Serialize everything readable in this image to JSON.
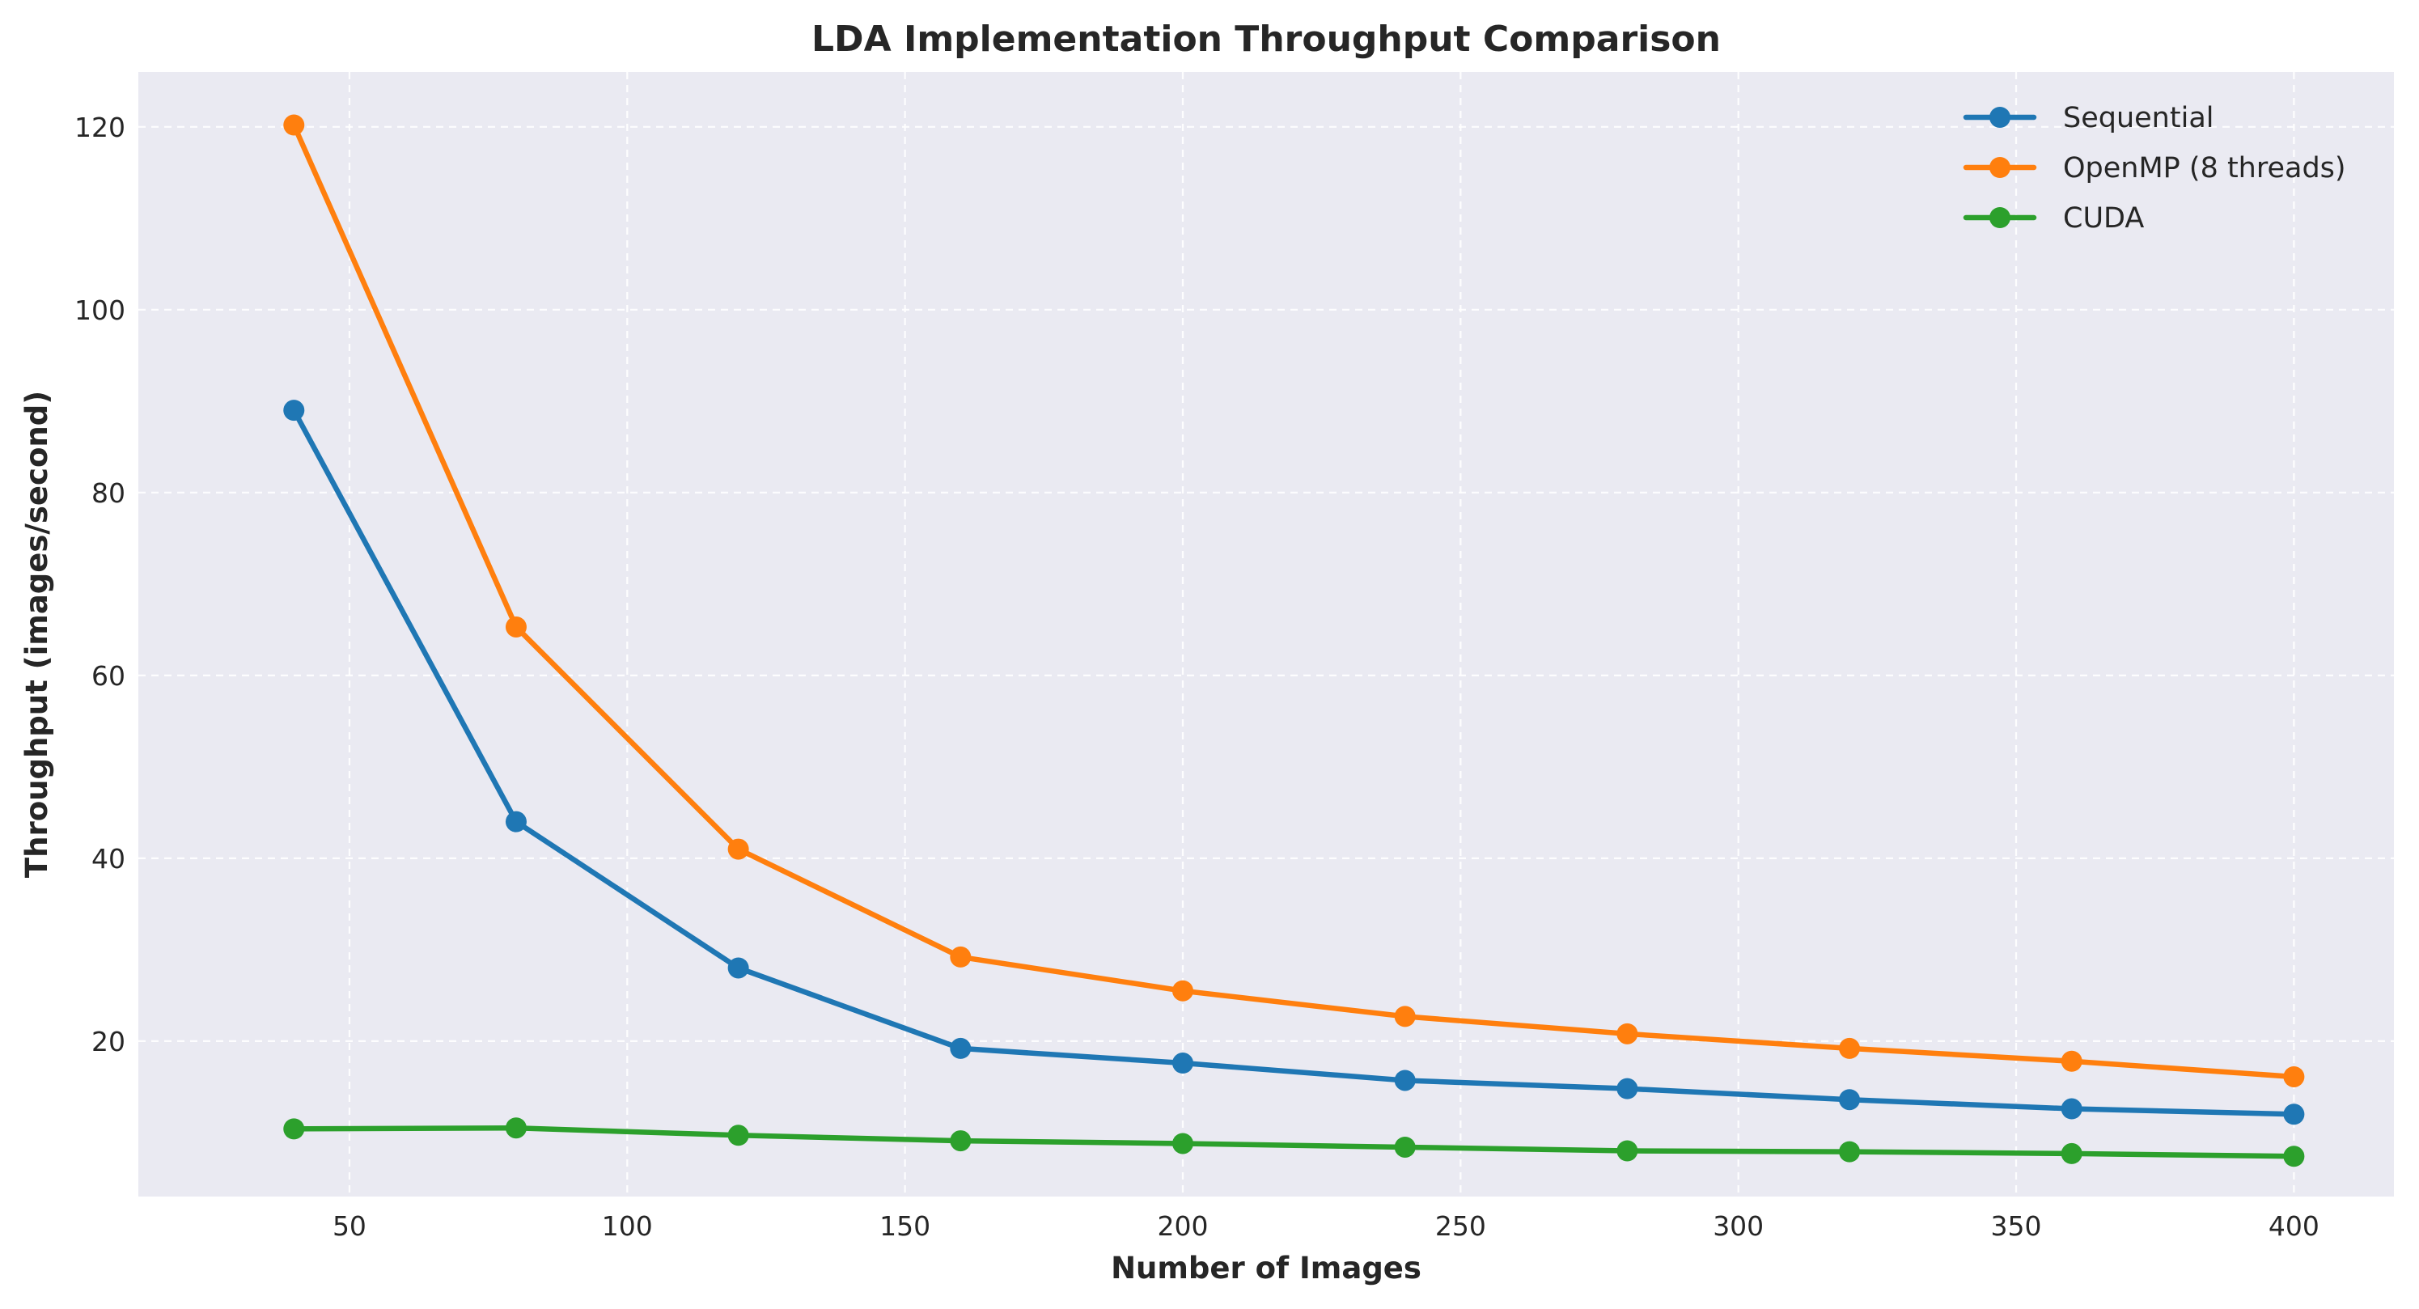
{
  "chart_data": {
    "type": "line",
    "title": "LDA Implementation Throughput Comparison",
    "xlabel": "Number of Images",
    "ylabel": "Throughput (images/second)",
    "x": [
      40,
      80,
      120,
      160,
      200,
      240,
      280,
      320,
      360,
      400
    ],
    "xlim": [
      12,
      418
    ],
    "ylim": [
      3,
      126
    ],
    "xticks": [
      50,
      100,
      150,
      200,
      250,
      300,
      350,
      400
    ],
    "yticks": [
      20,
      40,
      60,
      80,
      100,
      120
    ],
    "grid": true,
    "legend_position": "top-right",
    "series": [
      {
        "name": "Sequential",
        "color": "#1f77b4",
        "values": [
          89.0,
          44.0,
          28.0,
          19.2,
          17.6,
          15.7,
          14.8,
          13.6,
          12.6,
          12.0
        ]
      },
      {
        "name": "OpenMP (8 threads)",
        "color": "#ff7f0e",
        "values": [
          120.2,
          65.3,
          41.0,
          29.2,
          25.5,
          22.7,
          20.8,
          19.2,
          17.8,
          16.1
        ]
      },
      {
        "name": "CUDA",
        "color": "#2ca02c",
        "values": [
          10.4,
          10.5,
          9.7,
          9.1,
          8.8,
          8.4,
          8.0,
          7.9,
          7.7,
          7.4
        ]
      }
    ]
  },
  "style": {
    "plot_background": "#eaeaf2",
    "grid_color": "#ffffff",
    "text_color": "#262626"
  }
}
